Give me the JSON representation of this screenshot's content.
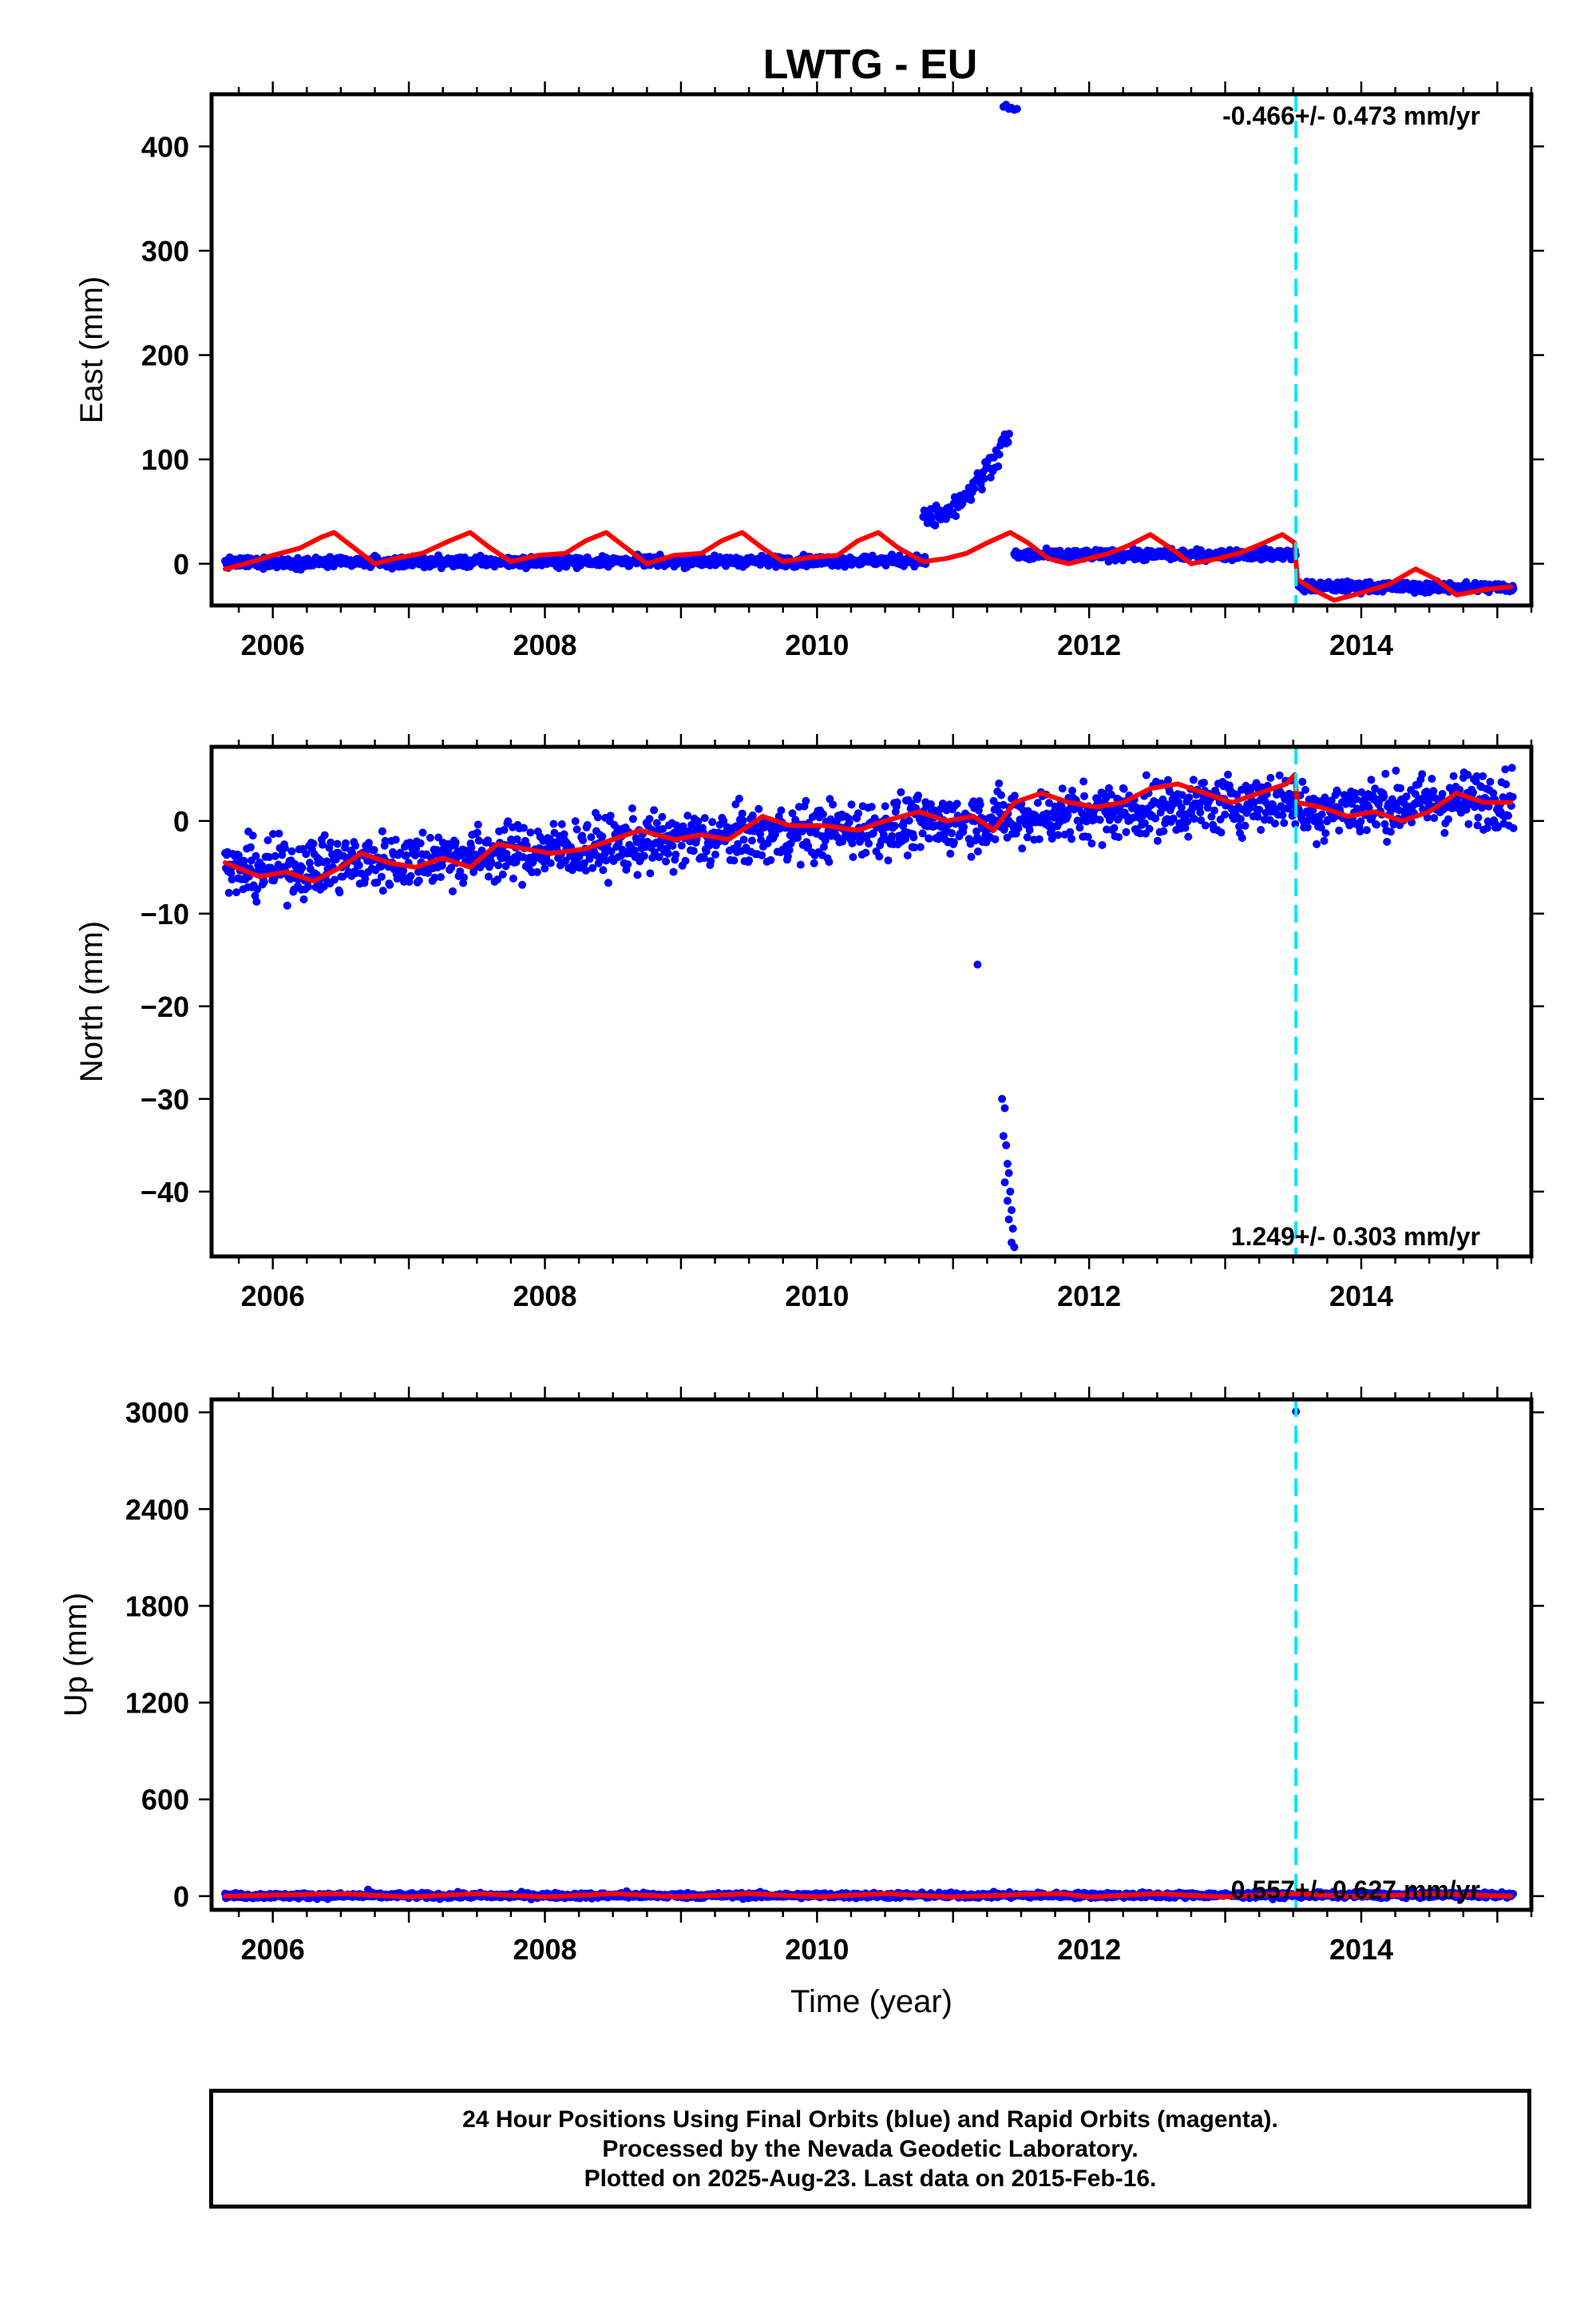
{
  "title": "LWTG - EU",
  "colors": {
    "final_orbits": "#0000ff",
    "model_fit": "#ff0000",
    "event_line": "#00e5ff",
    "axes": "#000000"
  },
  "chart_data": [
    {
      "type": "scatter",
      "panel": "east",
      "ylabel": "East (mm)",
      "xlabel": "",
      "xlim": [
        2005.55,
        2015.25
      ],
      "ylim": [
        -40,
        450
      ],
      "yticks": [
        0,
        100,
        200,
        300,
        400
      ],
      "xticks": [
        2006,
        2008,
        2010,
        2012,
        2014
      ],
      "rate_label": "-0.466+/- 0.473 mm/yr",
      "rate_position": "top-right",
      "event_line_x": 2013.52,
      "segments": [
        {
          "x0": 2005.65,
          "x1": 2010.8,
          "level": 1,
          "trend": 0.4,
          "scatter": 3.5
        },
        {
          "x0": 2011.45,
          "x1": 2013.52,
          "level": 8,
          "trend": 0.5,
          "scatter": 3.5
        },
        {
          "x0": 2013.54,
          "x1": 2015.12,
          "level": -22,
          "trend": -0.5,
          "scatter": 3.5
        }
      ],
      "outlier_ramp": {
        "x0": 2010.78,
        "x1": 2011.42,
        "y0": 45,
        "y1": 130,
        "scatter": 8
      },
      "outlier_cluster": [
        [
          2011.37,
          438
        ],
        [
          2011.39,
          440
        ],
        [
          2011.41,
          436
        ],
        [
          2011.43,
          437
        ],
        [
          2011.45,
          435
        ],
        [
          2011.47,
          436
        ]
      ],
      "model": [
        [
          2005.65,
          -5
        ],
        [
          2005.8,
          0
        ],
        [
          2006.0,
          8
        ],
        [
          2006.2,
          15
        ],
        [
          2006.35,
          25
        ],
        [
          2006.45,
          30
        ],
        [
          2006.6,
          15
        ],
        [
          2006.75,
          0
        ],
        [
          2006.9,
          5
        ],
        [
          2007.1,
          10
        ],
        [
          2007.3,
          22
        ],
        [
          2007.45,
          30
        ],
        [
          2007.6,
          15
        ],
        [
          2007.75,
          2
        ],
        [
          2007.95,
          8
        ],
        [
          2008.15,
          10
        ],
        [
          2008.3,
          22
        ],
        [
          2008.45,
          30
        ],
        [
          2008.6,
          15
        ],
        [
          2008.75,
          0
        ],
        [
          2008.95,
          8
        ],
        [
          2009.15,
          10
        ],
        [
          2009.3,
          22
        ],
        [
          2009.45,
          30
        ],
        [
          2009.6,
          15
        ],
        [
          2009.75,
          2
        ],
        [
          2009.95,
          6
        ],
        [
          2010.15,
          8
        ],
        [
          2010.3,
          22
        ],
        [
          2010.45,
          30
        ],
        [
          2010.6,
          15
        ],
        [
          2010.78,
          2
        ],
        [
          2010.95,
          5
        ],
        [
          2011.1,
          10
        ],
        [
          2011.25,
          20
        ],
        [
          2011.42,
          30
        ],
        [
          2011.55,
          20
        ],
        [
          2011.7,
          5
        ],
        [
          2011.85,
          0
        ],
        [
          2012.0,
          5
        ],
        [
          2012.15,
          10
        ],
        [
          2012.3,
          18
        ],
        [
          2012.45,
          28
        ],
        [
          2012.6,
          15
        ],
        [
          2012.75,
          0
        ],
        [
          2012.95,
          5
        ],
        [
          2013.1,
          10
        ],
        [
          2013.25,
          18
        ],
        [
          2013.42,
          28
        ],
        [
          2013.51,
          20
        ],
        [
          2013.53,
          -15
        ],
        [
          2013.65,
          -25
        ],
        [
          2013.8,
          -35
        ],
        [
          2014.0,
          -28
        ],
        [
          2014.2,
          -20
        ],
        [
          2014.4,
          -5
        ],
        [
          2014.55,
          -15
        ],
        [
          2014.7,
          -30
        ],
        [
          2014.9,
          -25
        ],
        [
          2015.1,
          -22
        ]
      ]
    },
    {
      "type": "scatter",
      "panel": "north",
      "ylabel": "North (mm)",
      "xlabel": "",
      "xlim": [
        2005.55,
        2015.25
      ],
      "ylim": [
        -47,
        8
      ],
      "yticks": [
        0,
        -10,
        -20,
        -30,
        -40
      ],
      "xticks": [
        2006,
        2008,
        2010,
        2012,
        2014
      ],
      "rate_label": "1.249+/- 0.303 mm/yr",
      "rate_position": "bottom-right",
      "event_line_x": 2013.52,
      "segments": [
        {
          "x0": 2005.65,
          "x1": 2013.52,
          "level": -5.5,
          "trend": 1.0,
          "scatter": 2.2
        },
        {
          "x0": 2013.54,
          "x1": 2015.12,
          "level": 1.0,
          "trend": 1.0,
          "scatter": 2.2
        }
      ],
      "outlier_points": [
        [
          2011.18,
          -15.5
        ],
        [
          2011.36,
          -30
        ],
        [
          2011.38,
          -31
        ],
        [
          2011.37,
          -34
        ],
        [
          2011.39,
          -35
        ],
        [
          2011.4,
          -37
        ],
        [
          2011.41,
          -38
        ],
        [
          2011.38,
          -39
        ],
        [
          2011.42,
          -40
        ],
        [
          2011.4,
          -41
        ],
        [
          2011.43,
          -42
        ],
        [
          2011.41,
          -43
        ],
        [
          2011.44,
          -44
        ],
        [
          2011.45,
          -46
        ],
        [
          2011.43,
          -45.5
        ]
      ],
      "model": [
        [
          2005.65,
          -4.5
        ],
        [
          2005.9,
          -6
        ],
        [
          2006.1,
          -5.5
        ],
        [
          2006.3,
          -6.5
        ],
        [
          2006.5,
          -5
        ],
        [
          2006.65,
          -3.5
        ],
        [
          2006.85,
          -4.5
        ],
        [
          2007.05,
          -5
        ],
        [
          2007.25,
          -4
        ],
        [
          2007.45,
          -5
        ],
        [
          2007.65,
          -2.5
        ],
        [
          2007.85,
          -3
        ],
        [
          2008.05,
          -3.5
        ],
        [
          2008.3,
          -3
        ],
        [
          2008.5,
          -2
        ],
        [
          2008.7,
          -1
        ],
        [
          2008.95,
          -2
        ],
        [
          2009.15,
          -1.5
        ],
        [
          2009.35,
          -2
        ],
        [
          2009.6,
          0.5
        ],
        [
          2009.8,
          -0.5
        ],
        [
          2010.05,
          -0.5
        ],
        [
          2010.3,
          -1
        ],
        [
          2010.5,
          0
        ],
        [
          2010.75,
          1
        ],
        [
          2010.95,
          0
        ],
        [
          2011.15,
          0.5
        ],
        [
          2011.3,
          -1
        ],
        [
          2011.45,
          2
        ],
        [
          2011.65,
          3
        ],
        [
          2011.85,
          2
        ],
        [
          2012.05,
          1.5
        ],
        [
          2012.25,
          2
        ],
        [
          2012.45,
          3.5
        ],
        [
          2012.65,
          4
        ],
        [
          2012.85,
          3
        ],
        [
          2013.05,
          2
        ],
        [
          2013.25,
          3
        ],
        [
          2013.45,
          4
        ],
        [
          2013.51,
          5
        ],
        [
          2013.53,
          2
        ],
        [
          2013.7,
          1.5
        ],
        [
          2013.9,
          0.5
        ],
        [
          2014.1,
          1
        ],
        [
          2014.3,
          0
        ],
        [
          2014.5,
          1
        ],
        [
          2014.7,
          3
        ],
        [
          2014.9,
          2
        ],
        [
          2015.1,
          2
        ]
      ]
    },
    {
      "type": "scatter",
      "panel": "up",
      "ylabel": "Up (mm)",
      "xlabel": "Time (year)",
      "xlim": [
        2005.55,
        2015.25
      ],
      "ylim": [
        -85,
        3080
      ],
      "yticks": [
        0,
        600,
        1200,
        1800,
        2400,
        3000
      ],
      "xticks": [
        2006,
        2008,
        2010,
        2012,
        2014
      ],
      "rate_label": "0.557+/- 0.627 mm/yr",
      "rate_position": "bottom-right",
      "event_line_x": 2013.52,
      "segments": [
        {
          "x0": 2005.65,
          "x1": 2015.12,
          "level": 2,
          "trend": 0.5,
          "scatter": 12
        }
      ],
      "outlier_points": [
        [
          2013.52,
          3005
        ],
        [
          2006.7,
          40
        ],
        [
          2008.6,
          30
        ]
      ],
      "model": [
        [
          2005.65,
          0
        ],
        [
          2006.5,
          15
        ],
        [
          2007.0,
          -5
        ],
        [
          2007.5,
          15
        ],
        [
          2008.0,
          -5
        ],
        [
          2008.5,
          15
        ],
        [
          2009.0,
          -5
        ],
        [
          2009.5,
          15
        ],
        [
          2010.0,
          -5
        ],
        [
          2010.5,
          15
        ],
        [
          2011.0,
          -5
        ],
        [
          2011.5,
          10
        ],
        [
          2011.8,
          15
        ],
        [
          2012.0,
          -5
        ],
        [
          2012.5,
          15
        ],
        [
          2013.0,
          -5
        ],
        [
          2013.5,
          15
        ],
        [
          2014.0,
          -5
        ],
        [
          2014.5,
          15
        ],
        [
          2015.1,
          0
        ]
      ]
    }
  ],
  "footer": {
    "line1": "24 Hour Positions Using Final Orbits (blue) and Rapid Orbits (magenta).",
    "line2": "Processed by the Nevada Geodetic Laboratory.",
    "line3": "Plotted on 2025-Aug-23. Last data on 2015-Feb-16."
  }
}
